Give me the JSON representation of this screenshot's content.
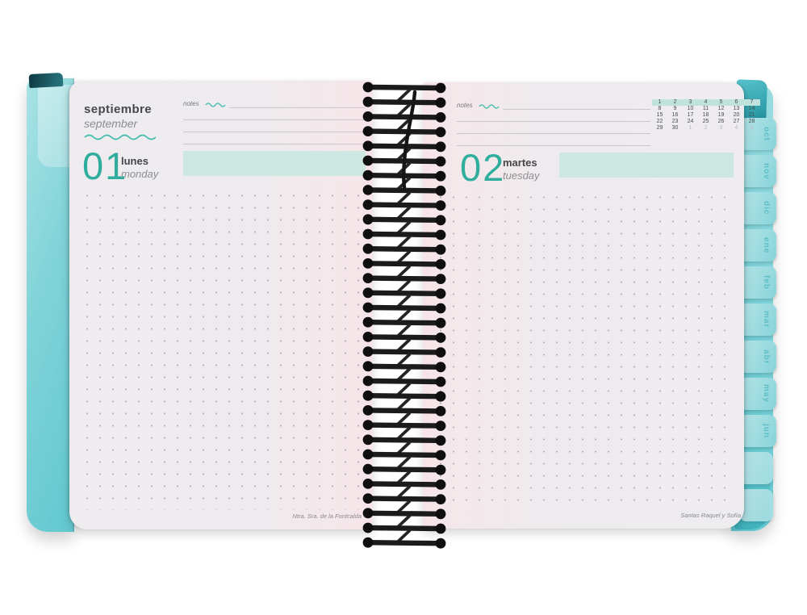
{
  "month_es": "septiembre",
  "month_en": "september",
  "left_page": {
    "notes_label": "notes",
    "day_number": "01",
    "day_name_es": "lunes",
    "day_name_en": "monday",
    "saint_caption": "Ntra. Sra. de la Fontcalda"
  },
  "right_page": {
    "notes_label": "notes",
    "day_number": "02",
    "day_name_es": "martes",
    "day_name_en": "tuesday",
    "saint_caption": "Santas Raquel y Sofía"
  },
  "mini_calendar": {
    "weeks": [
      [
        "1",
        "2",
        "3",
        "4",
        "5",
        "6",
        "7"
      ],
      [
        "8",
        "9",
        "10",
        "11",
        "12",
        "13",
        "14"
      ],
      [
        "15",
        "16",
        "17",
        "18",
        "19",
        "20",
        "21"
      ],
      [
        "22",
        "23",
        "24",
        "25",
        "26",
        "27",
        "28"
      ],
      [
        "29",
        "30",
        "1",
        "2",
        "3",
        "4",
        "5"
      ]
    ],
    "highlighted_week_index": 0,
    "muted_from_col_in_last_week": 2
  },
  "tabs": [
    "oct",
    "nov",
    "dic",
    "ene",
    "feb",
    "mar",
    "abr",
    "may",
    "jun",
    "",
    ""
  ],
  "colors": {
    "accent_teal": "#2fae9e",
    "highlight_bar": "#cde8e3",
    "calendar_highlight_row": "#bfe2dc",
    "cover_aqua": "#7fd3d8",
    "tab_fill": "#96d9de",
    "spiral_wire": "#1b1b1b",
    "page": "#eeecef"
  }
}
